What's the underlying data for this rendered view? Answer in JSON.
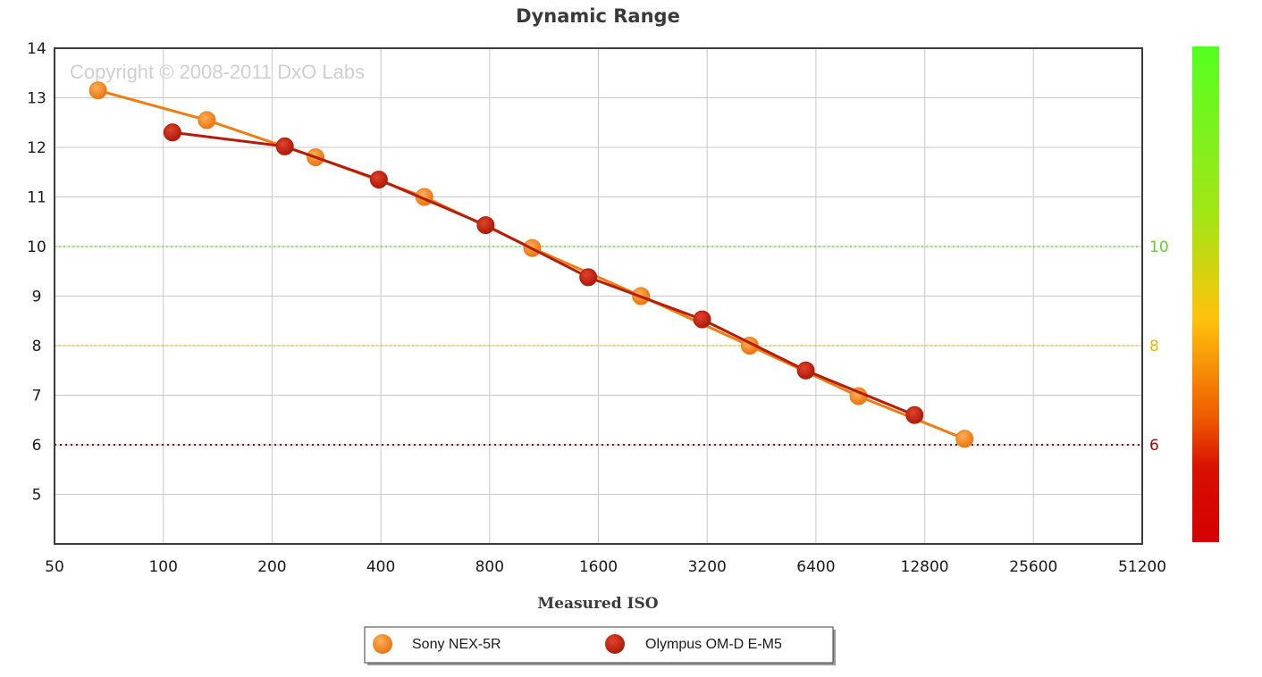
{
  "colors": {
    "sony": "#f07d12",
    "olympus": "#b51c0a",
    "grid": "#c8c8c8",
    "plot_border": "#3c3c3c",
    "ref_10": "#5ed21e",
    "ref_8": "#f0b400",
    "ref_6": "#b00000"
  },
  "watermark": "Copyright © 2008-2011 DxO Labs",
  "chart_data": {
    "type": "line",
    "title": "Dynamic Range",
    "xlabel": "Measured ISO",
    "ylabel": "",
    "x_scale": "log2",
    "x_ticks": [
      "50",
      "100",
      "200",
      "400",
      "800",
      "1600",
      "3200",
      "6400",
      "12800",
      "25600",
      "51200"
    ],
    "y_ticks": [
      "5",
      "6",
      "7",
      "8",
      "9",
      "10",
      "11",
      "12",
      "13",
      "14"
    ],
    "xlim": [
      50,
      51200
    ],
    "ylim": [
      4,
      14
    ],
    "grid": true,
    "legend_position": "bottom-center",
    "reference_lines": [
      {
        "label": "10",
        "y": 10,
        "color": "#5ed21e",
        "style": "dotted"
      },
      {
        "label": "8",
        "y": 8,
        "color": "#f0b400",
        "style": "dotted"
      },
      {
        "label": "6",
        "y": 6,
        "color": "#b00000",
        "style": "dotted"
      }
    ],
    "color_scale": {
      "top_color": "#5cff1a",
      "bottom_color": "#d60000",
      "range": [
        4,
        14
      ]
    },
    "series": [
      {
        "name": "Sony NEX-5R",
        "color": "#f07d12",
        "points": [
          [
            66,
            13.15
          ],
          [
            132,
            12.55
          ],
          [
            264,
            11.8
          ],
          [
            528,
            11.0
          ],
          [
            1050,
            9.97
          ],
          [
            2100,
            9.0
          ],
          [
            4200,
            8.0
          ],
          [
            8400,
            6.98
          ],
          [
            16500,
            6.12
          ]
        ]
      },
      {
        "name": "Olympus OM-D E-M5",
        "color": "#b51c0a",
        "points": [
          [
            106,
            12.3
          ],
          [
            217,
            12.02
          ],
          [
            395,
            11.35
          ],
          [
            780,
            10.43
          ],
          [
            1500,
            9.38
          ],
          [
            3100,
            8.53
          ],
          [
            6000,
            7.5
          ],
          [
            12000,
            6.6
          ]
        ]
      }
    ]
  }
}
